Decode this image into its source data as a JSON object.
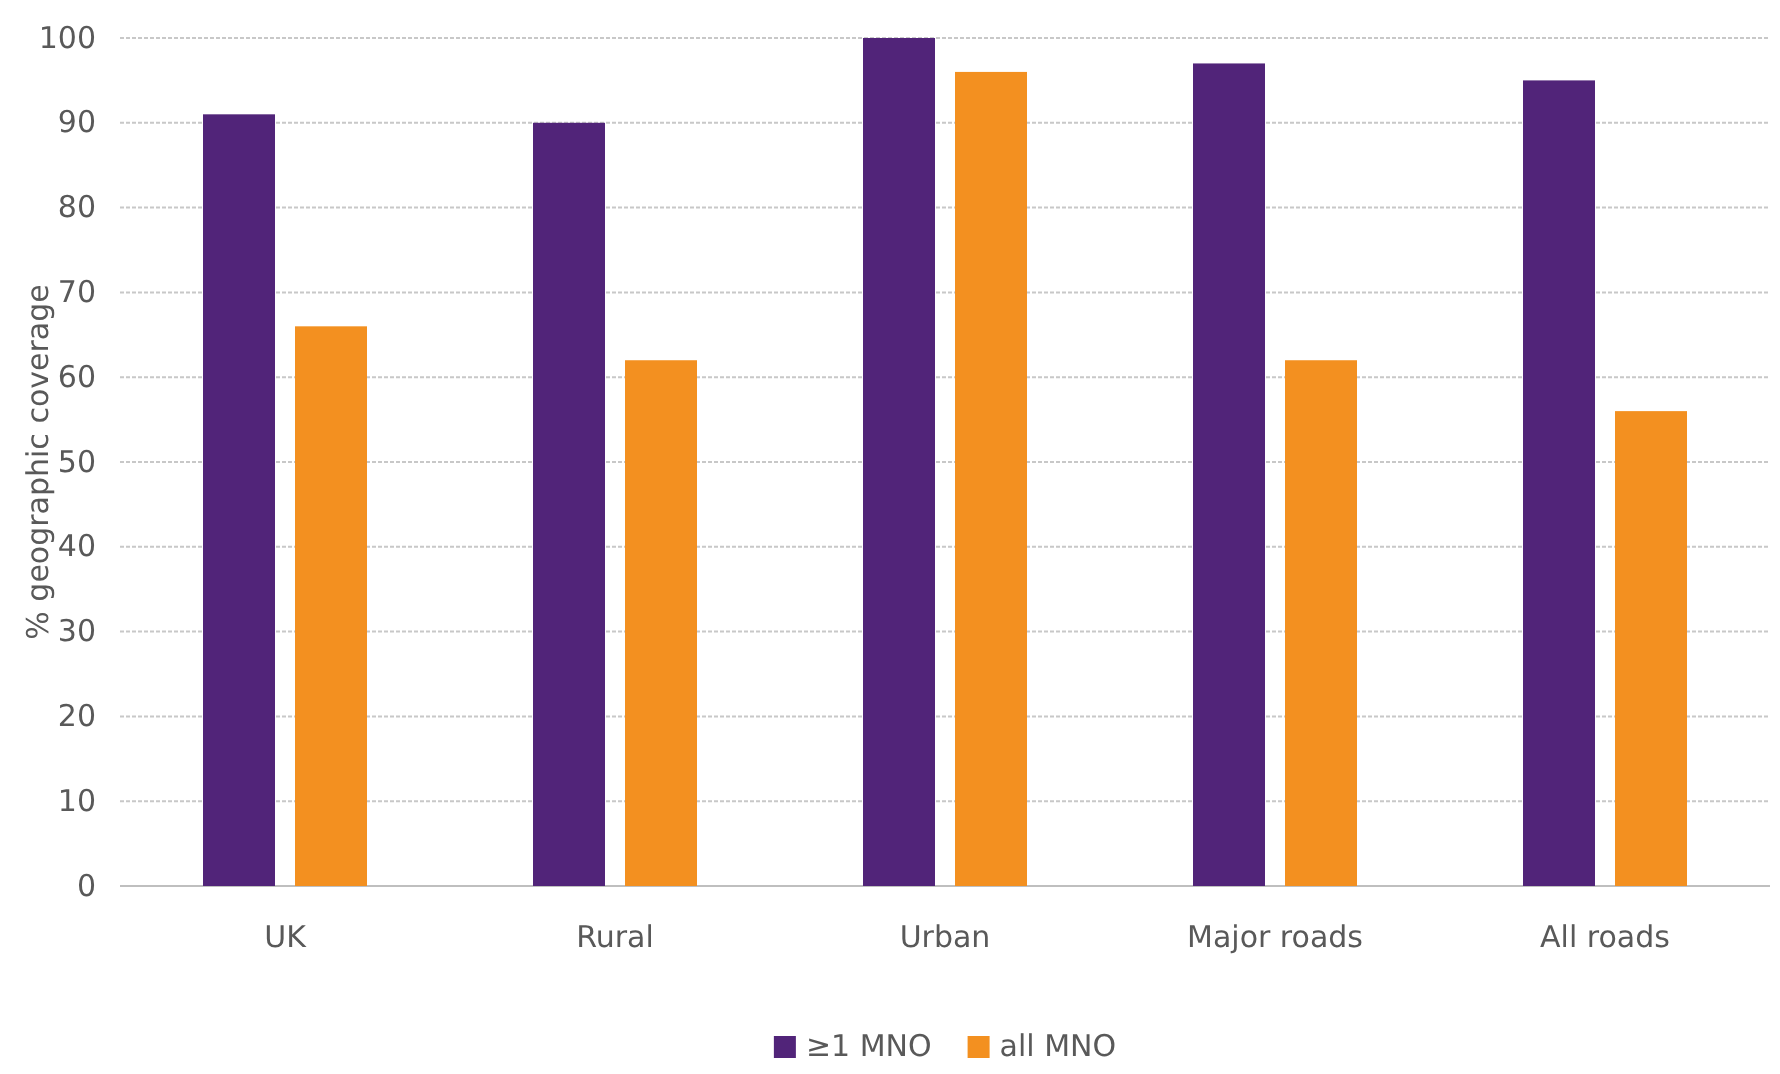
{
  "chart_data": {
    "type": "bar",
    "ylabel": "% geographic coverage",
    "categories": [
      "UK",
      "Rural",
      "Urban",
      "Major roads",
      "All roads"
    ],
    "series": [
      {
        "name": "≥1 MNO",
        "color": "#512479",
        "values": [
          91,
          90,
          100,
          97,
          95
        ]
      },
      {
        "name": "all MNO",
        "color": "#f39020",
        "values": [
          66,
          62,
          96,
          62,
          56
        ]
      }
    ],
    "ylim": [
      0,
      100
    ],
    "yticks": [
      0,
      10,
      20,
      30,
      40,
      50,
      60,
      70,
      80,
      90,
      100
    ],
    "grid": "y",
    "legend": "bottom"
  }
}
